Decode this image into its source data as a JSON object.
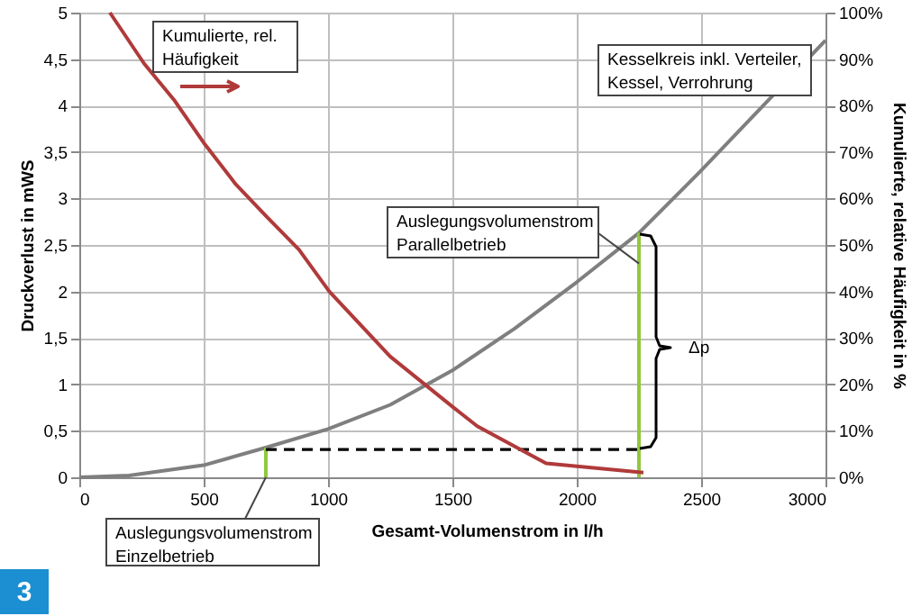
{
  "chart_data": {
    "type": "line",
    "xlabel": "Gesamt-Volumenstrom in l/h",
    "ylabel": "Druckverlust in mWS",
    "y2label": "Kumulierte, relative Häufigkeit in %",
    "xlim": [
      0,
      3000
    ],
    "xticks": [
      0,
      500,
      1000,
      1500,
      2000,
      2500,
      3000
    ],
    "ylim": [
      0,
      5
    ],
    "yticks": [
      0,
      {
        "value": 0.5,
        "label": "0,5"
      },
      1,
      {
        "value": 1.5,
        "label": "1,5"
      },
      2,
      {
        "value": 2.5,
        "label": "2,5"
      },
      3,
      {
        "value": 3.5,
        "label": "3,5"
      },
      4,
      {
        "value": 4.5,
        "label": "4,5"
      },
      5
    ],
    "y2lim": [
      0,
      100
    ],
    "y2ticks": [
      {
        "value": 0,
        "label": "0%"
      },
      {
        "value": 10,
        "label": "10%"
      },
      {
        "value": 20,
        "label": "20%"
      },
      {
        "value": 30,
        "label": "30%"
      },
      {
        "value": 40,
        "label": "40%"
      },
      {
        "value": 50,
        "label": "50%"
      },
      {
        "value": 60,
        "label": "60%"
      },
      {
        "value": 70,
        "label": "70%"
      },
      {
        "value": 80,
        "label": "80%"
      },
      {
        "value": 90,
        "label": "90%"
      },
      {
        "value": 100,
        "label": "100%"
      }
    ],
    "grid": true,
    "marker": "none",
    "line_style": "solid",
    "series": [
      {
        "color": "#7f7f7f",
        "x": [
          0,
          200,
          500,
          750,
          1000,
          1250,
          1500,
          1750,
          2000,
          2250,
          2500,
          2750,
          3000
        ],
        "values": [
          0,
          0.02,
          0.13,
          0.32,
          0.52,
          0.78,
          1.15,
          1.6,
          2.1,
          2.63,
          3.3,
          4.0,
          4.7
        ]
      },
      {
        "color": "#b03a3a",
        "axis": "y2",
        "x": [
          123,
          261,
          384,
          500,
          630,
          755,
          883,
          1005,
          1250,
          1505,
          1600,
          1877,
          2268
        ],
        "values": [
          100,
          89,
          81,
          72,
          63,
          56,
          49,
          40,
          26,
          15,
          11,
          3,
          1
        ]
      },
      {
        "color": "#92c83e",
        "x": [
          750,
          750
        ],
        "values": [
          0,
          0.32
        ]
      },
      {
        "color": "#92c83e",
        "x": [
          2250,
          2250
        ],
        "values": [
          0,
          2.63
        ]
      },
      {
        "color": "#000000",
        "line_style": "dashed",
        "x": [
          750,
          2250
        ],
        "values": [
          0.3,
          0.3
        ]
      }
    ],
    "annotations": [
      "Kumulierte, rel. Häufigkeit",
      "Kesselkreis inkl. Verteiler, Kessel, Verrohrung",
      {
        "text": "Auslegungsvolumenstrom Parallelbetrieb",
        "x": 2250,
        "y": 2.3
      },
      {
        "text": "Auslegungsvolumenstrom Einzelbetrieb",
        "x": 750,
        "y": 0
      },
      "Δp",
      "3"
    ]
  }
}
